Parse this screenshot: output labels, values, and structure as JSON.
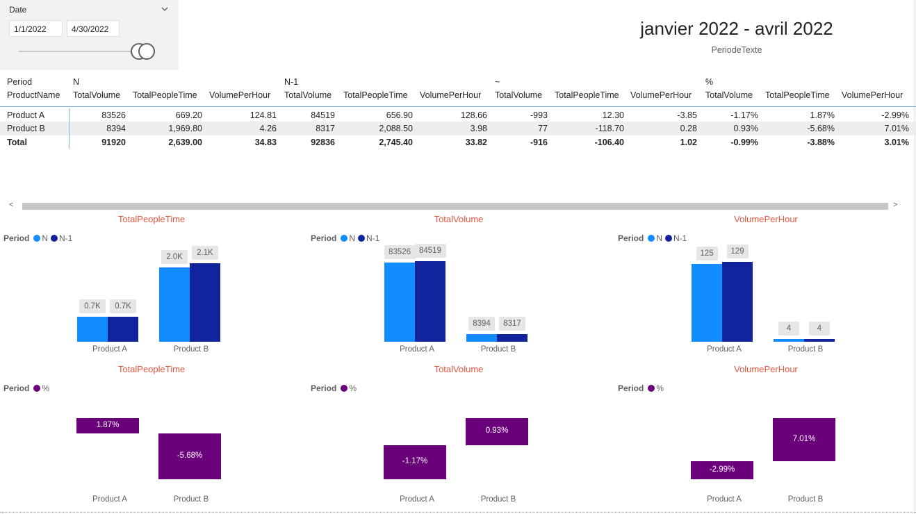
{
  "slicer": {
    "title": "Date",
    "start": "1/1/2022",
    "end": "4/30/2022",
    "chevron_icon": "chevron-down-icon"
  },
  "header": {
    "title": "janvier 2022 - avril 2022",
    "subtitle": "PeriodeTexte"
  },
  "matrix": {
    "row_header_1": "Period",
    "row_header_2": "ProductName",
    "groups": [
      "N",
      "N-1",
      "~",
      "%"
    ],
    "measures": [
      "TotalVolume",
      "TotalPeopleTime",
      "VolumePerHour"
    ],
    "rows": [
      {
        "name": "Product A",
        "values": [
          "83526",
          "669.20",
          "124.81",
          "84519",
          "656.90",
          "128.66",
          "-993",
          "12.30",
          "-3.85",
          "-1.17%",
          "1.87%",
          "-2.99%"
        ]
      },
      {
        "name": "Product B",
        "values": [
          "8394",
          "1,969.80",
          "4.26",
          "8317",
          "2,088.50",
          "3.98",
          "77",
          "-118.70",
          "0.28",
          "0.93%",
          "-5.68%",
          "7.01%"
        ]
      }
    ],
    "total": {
      "name": "Total",
      "values": [
        "91920",
        "2,639.00",
        "34.83",
        "92836",
        "2,745.40",
        "33.82",
        "-916",
        "-106.40",
        "1.02",
        "-0.99%",
        "-3.88%",
        "3.01%"
      ]
    }
  },
  "scrollbar": {
    "left_arrow": "<",
    "right_arrow": ">"
  },
  "colors": {
    "N": "#118dff",
    "N-1": "#12239e",
    "pct": "#6b007b",
    "title": "#e1573e"
  },
  "chart_data": [
    {
      "type": "bar",
      "title": "TotalPeopleTime",
      "legend_title": "Period",
      "categories": [
        "Product A",
        "Product B"
      ],
      "series": [
        {
          "name": "N",
          "values": [
            669.2,
            1969.8
          ],
          "labels": [
            "0.7K",
            "2.0K"
          ]
        },
        {
          "name": "N-1",
          "values": [
            656.9,
            2088.5
          ],
          "labels": [
            "0.7K",
            "2.1K"
          ]
        }
      ],
      "ylim": [
        0,
        2400
      ]
    },
    {
      "type": "bar",
      "title": "TotalVolume",
      "legend_title": "Period",
      "categories": [
        "Product A",
        "Product B"
      ],
      "series": [
        {
          "name": "N",
          "values": [
            83526,
            8394
          ],
          "labels": [
            "83526",
            "8394"
          ]
        },
        {
          "name": "N-1",
          "values": [
            84519,
            8317
          ],
          "labels": [
            "84519",
            "8317"
          ]
        }
      ],
      "ylim": [
        0,
        95000
      ]
    },
    {
      "type": "bar",
      "title": "VolumePerHour",
      "legend_title": "Period",
      "categories": [
        "Product A",
        "Product B"
      ],
      "series": [
        {
          "name": "N",
          "values": [
            124.81,
            4.26
          ],
          "labels": [
            "125",
            "4"
          ]
        },
        {
          "name": "N-1",
          "values": [
            128.66,
            3.98
          ],
          "labels": [
            "129",
            "4"
          ]
        }
      ],
      "ylim": [
        0,
        145
      ]
    },
    {
      "type": "bar",
      "title": "TotalPeopleTime",
      "legend_title": "Period",
      "categories": [
        "Product A",
        "Product B"
      ],
      "series": [
        {
          "name": "%",
          "values": [
            1.87,
            -5.68
          ],
          "labels": [
            "1.87%",
            "-5.68%"
          ]
        }
      ]
    },
    {
      "type": "bar",
      "title": "TotalVolume",
      "legend_title": "Period",
      "categories": [
        "Product A",
        "Product B"
      ],
      "series": [
        {
          "name": "%",
          "values": [
            -1.17,
            0.93
          ],
          "labels": [
            "-1.17%",
            "0.93%"
          ]
        }
      ]
    },
    {
      "type": "bar",
      "title": "VolumePerHour",
      "legend_title": "Period",
      "categories": [
        "Product A",
        "Product B"
      ],
      "series": [
        {
          "name": "%",
          "values": [
            -2.99,
            7.01
          ],
          "labels": [
            "-2.99%",
            "7.01%"
          ]
        }
      ]
    }
  ]
}
